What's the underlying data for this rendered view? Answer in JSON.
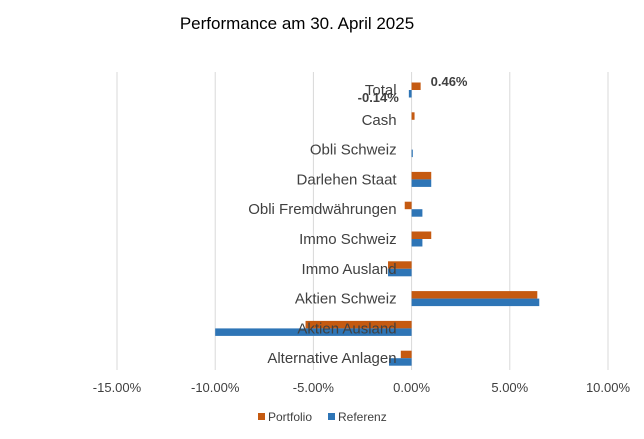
{
  "chart_data": {
    "type": "bar",
    "orientation": "horizontal",
    "title": "Performance am 30. April 2025",
    "categories": [
      "Total",
      "Cash",
      "Obli Schweiz",
      "Darlehen Staat",
      "Obli Fremdwährungen",
      "Immo Schweiz",
      "Immo Ausland",
      "Aktien Schweiz",
      "Aktien Ausland",
      "Alternative Anlagen"
    ],
    "series": [
      {
        "name": "Portfolio",
        "color": "#C55A11",
        "values": [
          0.46,
          0.15,
          0.0,
          1.0,
          -0.35,
          1.0,
          -1.2,
          6.4,
          -5.4,
          -0.55
        ]
      },
      {
        "name": "Referenz",
        "color": "#2E75B6",
        "values": [
          -0.14,
          0.0,
          0.05,
          1.0,
          0.55,
          0.55,
          -1.2,
          6.5,
          -10.0,
          -1.15
        ]
      }
    ],
    "data_labels": [
      {
        "category": "Total",
        "series": "Portfolio",
        "text": "0.46%"
      },
      {
        "category": "Total",
        "series": "Referenz",
        "text": "-0.14%"
      }
    ],
    "xlim": [
      -15,
      10
    ],
    "x_ticks": [
      "-15.00%",
      "-10.00%",
      "-5.00%",
      "0.00%",
      "5.00%",
      "10.00%"
    ],
    "x_tick_values": [
      -15,
      -10,
      -5,
      0,
      5,
      10
    ],
    "grid": true,
    "legend_position": "bottom"
  }
}
